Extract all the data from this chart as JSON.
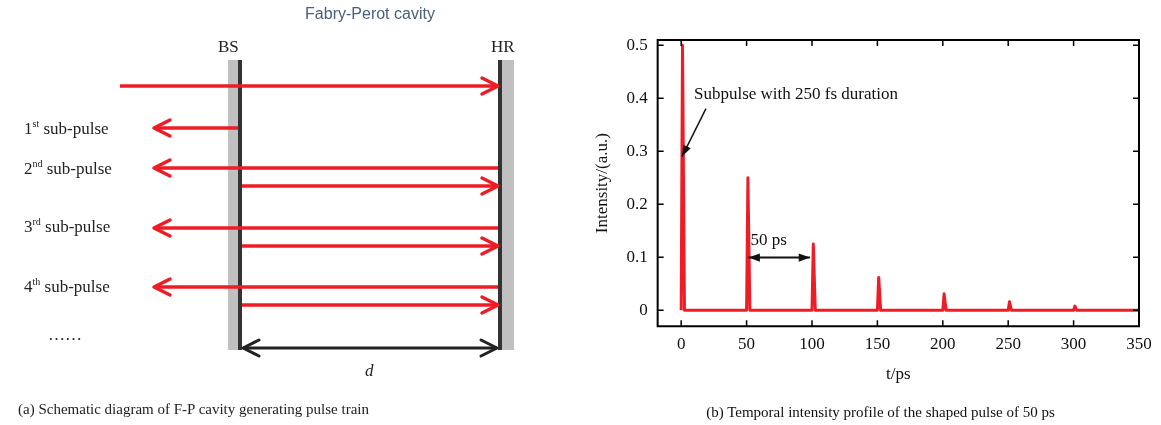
{
  "chart_data": [
    {
      "type": "other",
      "title": "Fabry-Perot cavity",
      "annotations": [
        "BS",
        "HR",
        "1$^{st}$ sub-pulse",
        "2$^{nd}$ sub-pulse",
        "3$^{rd}$ sub-pulse",
        "4$^{th}$ sub-pulse",
        "……",
        "d",
        "(a) Schematic diagram of F-P cavity generating pulse train"
      ]
    },
    {
      "type": "line",
      "xlabel": "t/ps",
      "ylabel": "Intensity/(a.u.)",
      "marker": "none",
      "x": [
        0,
        1,
        2.5,
        50,
        51,
        52.5,
        100,
        101,
        102.5,
        150,
        151,
        152.5,
        200,
        201,
        202.5,
        250,
        251,
        252.5,
        300,
        301,
        302.5,
        350
      ],
      "series": [
        {
          "color": "#ee1c25",
          "values": [
            0,
            0.5,
            0,
            0,
            0.25,
            0,
            0,
            0.125,
            0,
            0,
            0.062,
            0,
            0,
            0.031,
            0,
            0,
            0.016,
            0,
            0,
            0.008,
            0,
            0
          ]
        }
      ],
      "xlim": [
        -18,
        350
      ],
      "ylim": [
        -0.03,
        0.51
      ],
      "xticks": [
        0,
        50,
        100,
        150,
        200,
        250,
        300,
        350
      ],
      "yticks": [
        0,
        0.1,
        0.2,
        0.3,
        0.4,
        0.5
      ],
      "annotations": [
        {
          "text": "Subpulse with 250 fs duration",
          "x": 0.6,
          "y": 0.29
        },
        "50 ps",
        "(b) Temporal intensity profile of the shaped pulse of 50 ps"
      ]
    }
  ]
}
